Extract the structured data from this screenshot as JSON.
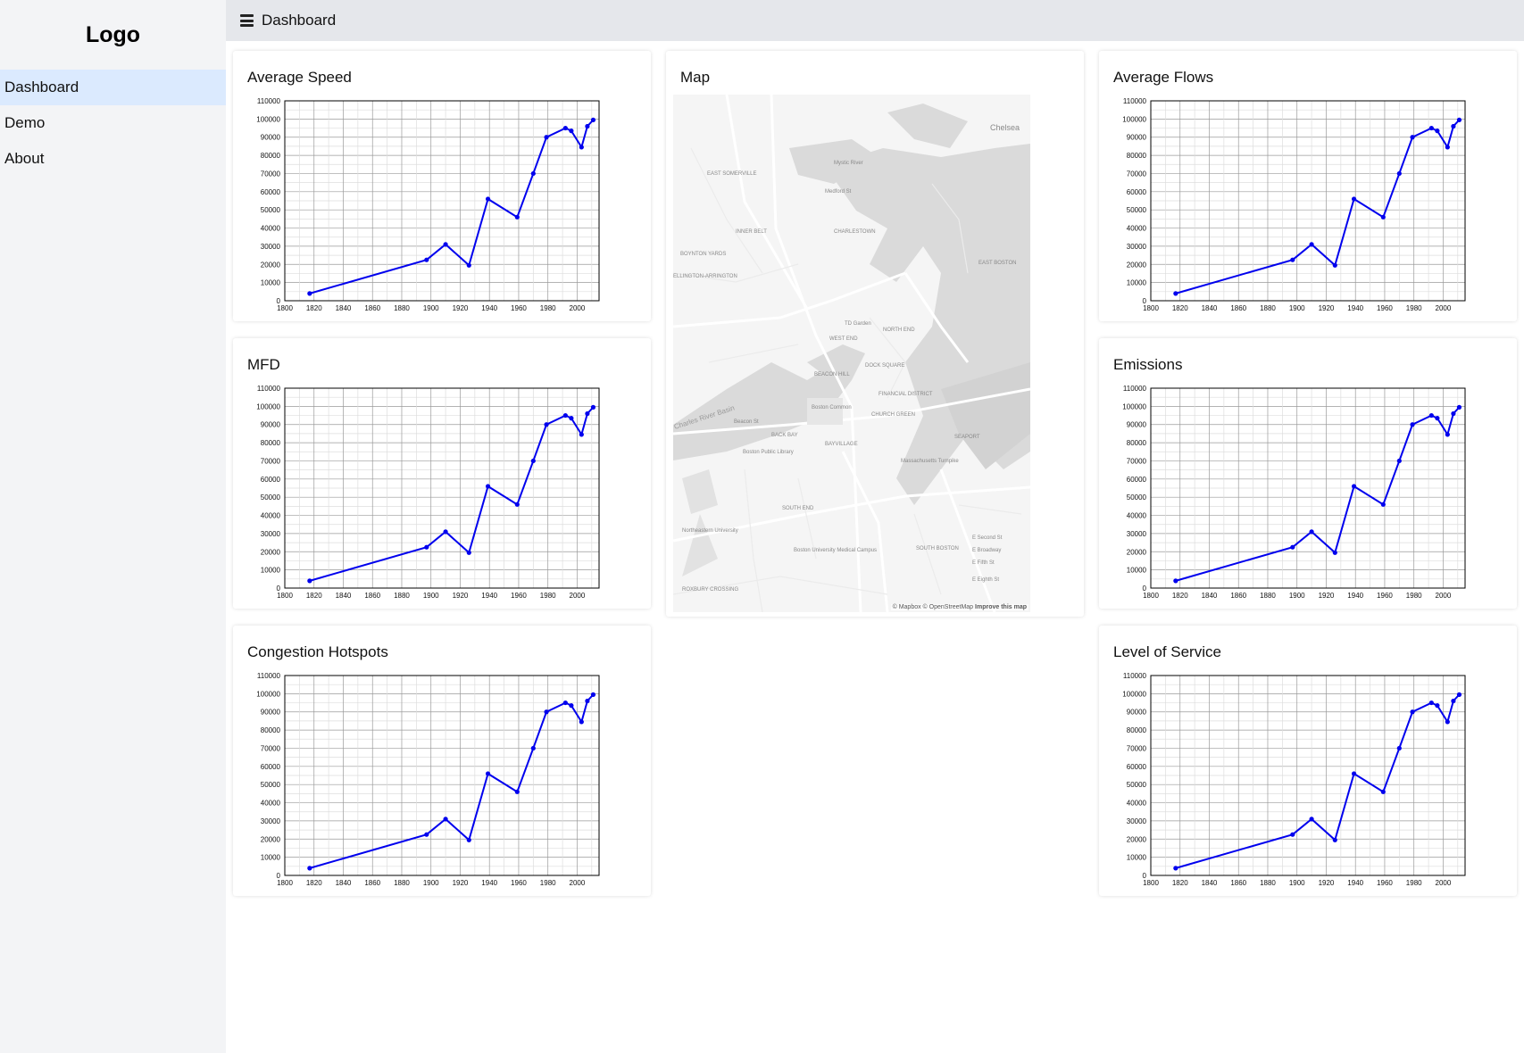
{
  "sidebar": {
    "logo": "Logo",
    "items": [
      {
        "label": "Dashboard",
        "active": true
      },
      {
        "label": "Demo",
        "active": false
      },
      {
        "label": "About",
        "active": false
      }
    ]
  },
  "topbar": {
    "title": "Dashboard",
    "icon": "hamburger-menu-icon"
  },
  "colors": {
    "series": "#0000ee",
    "sidebar_bg": "#f3f4f6",
    "active_bg": "#dbeafe",
    "topbar_bg": "#e5e7eb"
  },
  "cards": {
    "average_speed": {
      "title": "Average Speed"
    },
    "mfd": {
      "title": "MFD"
    },
    "congestion": {
      "title": "Congestion Hotspots"
    },
    "map": {
      "title": "Map"
    },
    "average_flows": {
      "title": "Average Flows"
    },
    "emissions": {
      "title": "Emissions"
    },
    "los": {
      "title": "Level of Service"
    }
  },
  "map": {
    "credit": "© Mapbox © OpenStreetMap",
    "credit_link": "Improve this map",
    "labels": [
      "Chelsea",
      "CHARLESTOWN",
      "EAST SOMERVILLE",
      "INNER BELT",
      "BOYNTON YARDS",
      "ELLINGTON-ARRINGTON",
      "NORTH END",
      "WEST END",
      "BEACON HILL",
      "DOCK SQUARE",
      "FINANCIAL DISTRICT",
      "CHURCH GREEN",
      "BACK BAY",
      "BAYVILLAGE",
      "SOUTH END",
      "SOUTH BOSTON",
      "EAST BOSTON",
      "SEAPORT",
      "Charles River Basin",
      "Mystic River",
      "Boston Common",
      "Boston Public Library",
      "Northeastern University",
      "Massachusetts Turnpike",
      "E Broadway",
      "E Second St",
      "E Fifth St",
      "E Eighth St",
      "Medford St",
      "Beacon St",
      "TD Garden",
      "ROXBURY CROSSING",
      "Boston University Medical Campus"
    ]
  },
  "chart_data": [
    {
      "type": "line",
      "x": [
        1817,
        1897,
        1910,
        1926,
        1939,
        1959,
        1970,
        1979,
        1992,
        1996,
        2003,
        2007,
        2011
      ],
      "y": [
        4000,
        22500,
        31000,
        19500,
        56000,
        46000,
        70000,
        90000,
        95000,
        93500,
        84500,
        96000,
        99500
      ],
      "xlim": [
        1800,
        2015
      ],
      "ylim": [
        0,
        110000
      ],
      "xticks": [
        "1800",
        "1820",
        "1840",
        "1860",
        "1880",
        "1900",
        "1920",
        "1940",
        "1960",
        "1980",
        "2000"
      ],
      "yticks": [
        "0",
        "10000",
        "20000",
        "30000",
        "40000",
        "50000",
        "60000",
        "70000",
        "80000",
        "90000",
        "100000",
        "110000"
      ],
      "grid": true
    }
  ]
}
